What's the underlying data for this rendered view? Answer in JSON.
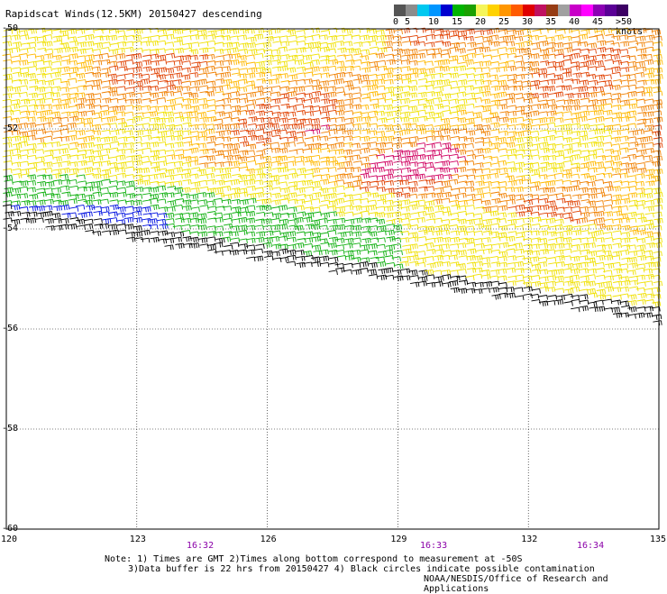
{
  "title": "Rapidscat Winds(12.5KM) 20150427 descending",
  "legend": {
    "colors": [
      "#555555",
      "#8c8c8c",
      "#00c8f0",
      "#0096ff",
      "#0000d0",
      "#00b400",
      "#1aa000",
      "#f5f55a",
      "#ffd200",
      "#ff9600",
      "#ff5a00",
      "#e00000",
      "#c01060",
      "#963c14",
      "#a0a0a0",
      "#c800c8",
      "#ff00ff",
      "#8c00b4",
      "#5a0096",
      "#3c0064"
    ],
    "tick_labels": [
      "0",
      "5",
      "10",
      "15",
      "20",
      "25",
      "30",
      "35",
      "40",
      "45",
      ">50 knots"
    ],
    "tick_positions": [
      0,
      1,
      3,
      5,
      7,
      9,
      11,
      13,
      15,
      17,
      19
    ]
  },
  "map": {
    "lat_labels": [
      "-50",
      "-52",
      "-54",
      "-56",
      "-58",
      "-60"
    ],
    "lon_labels": [
      "120",
      "123",
      "126",
      "129",
      "132",
      "135"
    ],
    "time_labels": [
      "16:32",
      "16:33",
      "16:34"
    ]
  },
  "notes": {
    "line1": "Note: 1) Times are GMT 2)Times along bottom correspond to measurement at -50S",
    "line2": "3)Data buffer is 22 hrs from 20150427 4) Black circles indicate possible contamination"
  },
  "credit": "NOAA/NESDIS/Office of Research and Applications",
  "colors": {
    "black": "#000000",
    "blue": "#0010e0",
    "green": "#10b010",
    "yellow": "#f0e000",
    "orange_light": "#ffb800",
    "orange": "#f08000",
    "red_orange": "#e04000",
    "magenta": "#d00060"
  }
}
